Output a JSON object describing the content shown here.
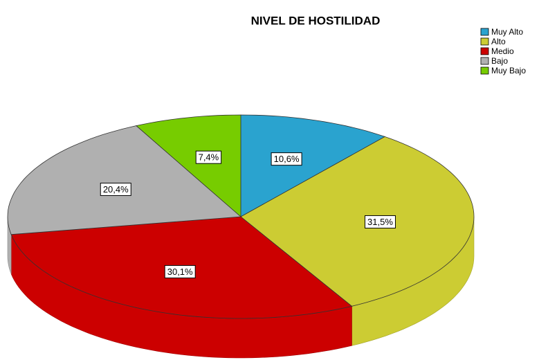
{
  "chart_data": {
    "type": "pie3d",
    "title": "NIVEL DE HOSTILIDAD",
    "categories": [
      "Muy Alto",
      "Alto",
      "Medio",
      "Bajo",
      "Muy Bajo"
    ],
    "values": [
      10.6,
      31.5,
      30.1,
      20.4,
      7.4
    ],
    "value_labels": [
      "10,6%",
      "31,5%",
      "30,1%",
      "20,4%",
      "7,4%"
    ],
    "colors": [
      "#2aa3cf",
      "#cccc33",
      "#cc0000",
      "#b0b0b0",
      "#77cc00"
    ],
    "legend": "top-right"
  }
}
